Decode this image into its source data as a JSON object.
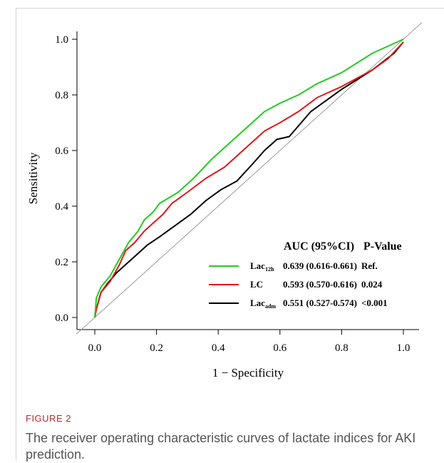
{
  "figure": {
    "label": "FIGURE 2",
    "caption": "The receiver operating characteristic curves of lactate indices for AKI prediction."
  },
  "chart_data": {
    "type": "line",
    "xlabel": "1 − Specificity",
    "ylabel": "Sensitivity",
    "xlim": [
      0.0,
      1.0
    ],
    "ylim": [
      0.0,
      1.0
    ],
    "xticks": [
      "0.0",
      "0.2",
      "0.4",
      "0.6",
      "0.8",
      "1.0"
    ],
    "yticks": [
      "0.0",
      "0.2",
      "0.4",
      "0.6",
      "0.8",
      "1.0"
    ],
    "grid": false,
    "legend_position": "bottom-right",
    "legend_header": {
      "auc": "AUC (95%CI)",
      "p": "P-Value"
    },
    "reference_line": {
      "x": [
        0,
        1
      ],
      "y": [
        0,
        1
      ],
      "color": "#999999"
    },
    "series": [
      {
        "name": "Lac",
        "subscript": "12h",
        "auc_text": "0.639 (0.616-0.661)",
        "p_text": "Ref.",
        "color": "#22cc22",
        "x": [
          0.0,
          0.005,
          0.02,
          0.05,
          0.08,
          0.11,
          0.14,
          0.16,
          0.19,
          0.21,
          0.27,
          0.32,
          0.38,
          0.44,
          0.5,
          0.55,
          0.6,
          0.66,
          0.72,
          0.8,
          0.9,
          1.0
        ],
        "y": [
          0.0,
          0.07,
          0.11,
          0.15,
          0.21,
          0.27,
          0.31,
          0.35,
          0.38,
          0.41,
          0.45,
          0.5,
          0.57,
          0.63,
          0.69,
          0.74,
          0.77,
          0.8,
          0.84,
          0.88,
          0.95,
          1.0
        ]
      },
      {
        "name": "LC",
        "subscript": "",
        "auc_text": "0.593 (0.570-0.616)",
        "p_text": "0.024",
        "color": "#e01818",
        "x": [
          0.0,
          0.005,
          0.02,
          0.05,
          0.08,
          0.1,
          0.13,
          0.16,
          0.19,
          0.22,
          0.25,
          0.3,
          0.36,
          0.42,
          0.48,
          0.55,
          0.6,
          0.66,
          0.72,
          0.8,
          0.9,
          0.95,
          1.0
        ],
        "y": [
          0.0,
          0.03,
          0.09,
          0.13,
          0.19,
          0.24,
          0.27,
          0.31,
          0.34,
          0.37,
          0.41,
          0.45,
          0.5,
          0.54,
          0.6,
          0.67,
          0.7,
          0.74,
          0.79,
          0.83,
          0.89,
          0.93,
          0.99
        ]
      },
      {
        "name": "Lac",
        "subscript": "adm",
        "auc_text": "0.551 (0.527-0.574)",
        "p_text": "<0.001",
        "color": "#000000",
        "x": [
          0.0,
          0.005,
          0.02,
          0.04,
          0.07,
          0.1,
          0.13,
          0.17,
          0.21,
          0.26,
          0.31,
          0.36,
          0.41,
          0.46,
          0.51,
          0.55,
          0.59,
          0.63,
          0.7,
          0.8,
          0.9,
          0.97,
          1.0
        ],
        "y": [
          0.0,
          0.03,
          0.09,
          0.12,
          0.16,
          0.19,
          0.22,
          0.26,
          0.29,
          0.33,
          0.37,
          0.42,
          0.46,
          0.49,
          0.55,
          0.6,
          0.64,
          0.65,
          0.74,
          0.82,
          0.89,
          0.95,
          0.99
        ]
      }
    ]
  }
}
